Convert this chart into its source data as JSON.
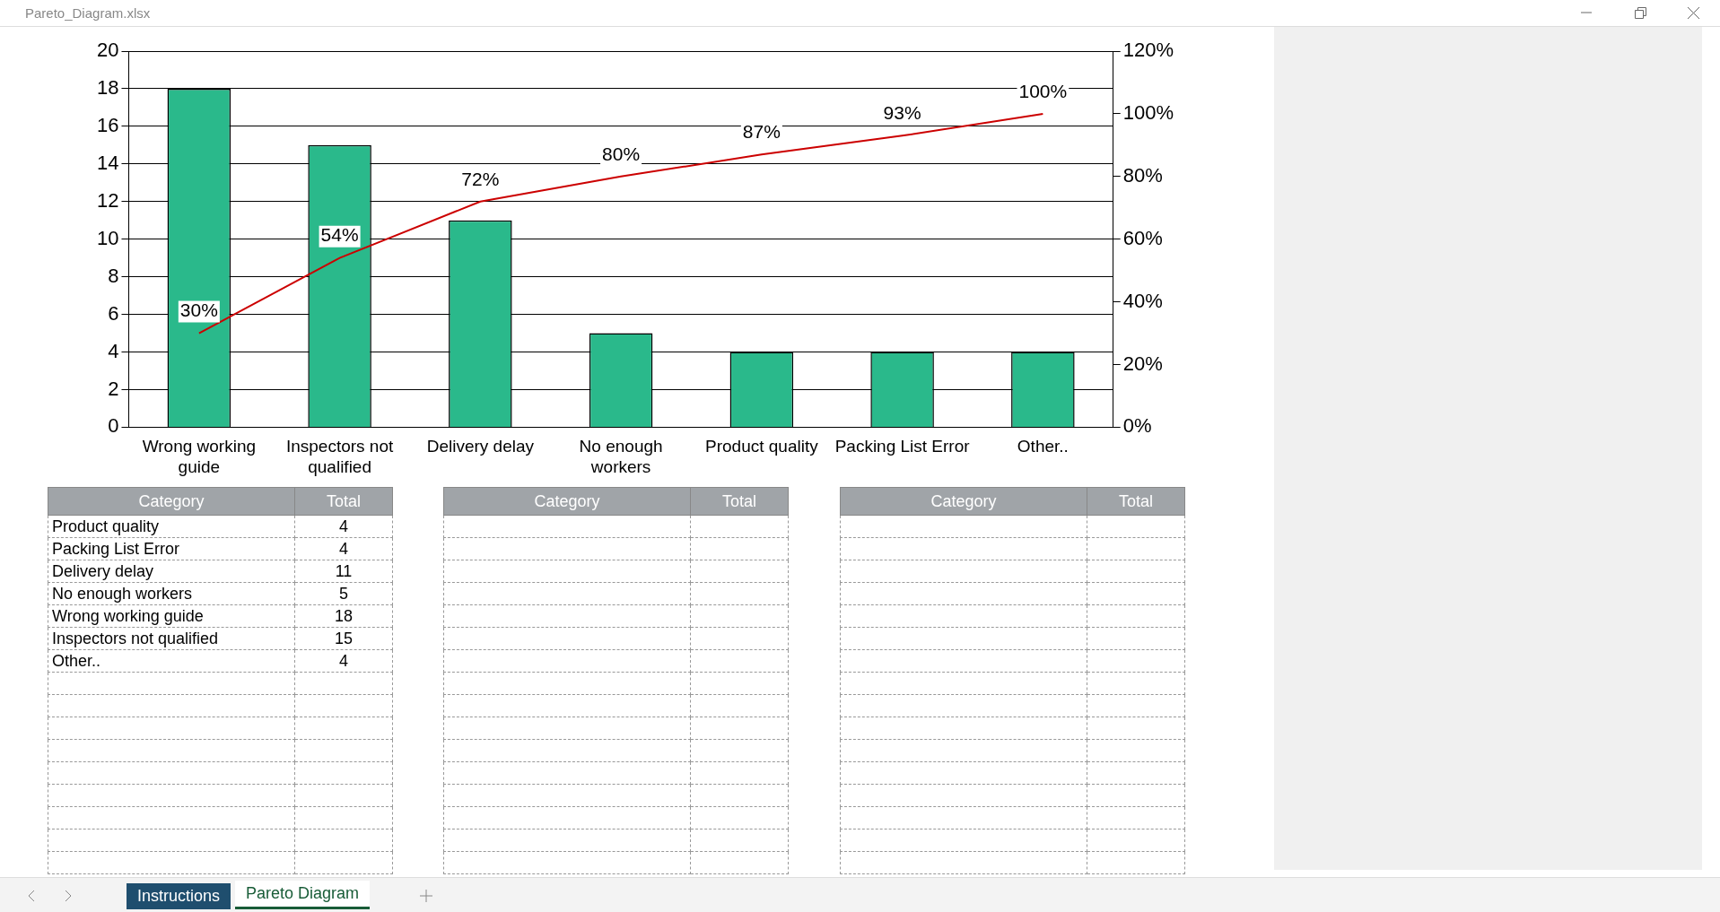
{
  "chart_data": {
    "type": "bar",
    "categories": [
      "Wrong working guide",
      "Inspectors not qualified",
      "Delivery delay",
      "No enough workers",
      "Product quality",
      "Packing List Error",
      "Other.."
    ],
    "series": [
      {
        "color": "#2ab98b",
        "values": [
          18,
          15,
          11,
          5,
          4,
          4,
          4
        ]
      },
      {
        "type": "line",
        "axis": "y2",
        "color": "#cc0000",
        "values": [
          30,
          54,
          72,
          80,
          87,
          93,
          100
        ],
        "value_labels": [
          "30%",
          "54%",
          "72%",
          "80%",
          "87%",
          "93%",
          "100%"
        ]
      }
    ],
    "ylim": [
      0,
      20
    ],
    "yticks": [
      0,
      2,
      4,
      6,
      8,
      10,
      12,
      14,
      16,
      18,
      20
    ],
    "y2lim": [
      0,
      120
    ],
    "y2ticks": [
      {
        "value": 0,
        "label": "0%"
      },
      {
        "value": 20,
        "label": "20%"
      },
      {
        "value": 40,
        "label": "40%"
      },
      {
        "value": 60,
        "label": "60%"
      },
      {
        "value": 80,
        "label": "80%"
      },
      {
        "value": 100,
        "label": "100%"
      },
      {
        "value": 120,
        "label": "120%"
      }
    ],
    "grid": "y",
    "legend": false,
    "marker": "none",
    "line_style": "solid",
    "annotations": [
      "Pareto_Diagram.xlsx",
      "Instructions",
      "Pareto Diagram",
      "Category",
      "Total",
      "Category",
      "Total",
      "Category",
      "Total",
      "Product quality",
      "4",
      "Packing List Error",
      "4",
      "Delivery delay",
      "11",
      "No enough workers",
      "5",
      "Wrong working guide",
      "18",
      "Inspectors not qualified",
      "15",
      "Other..",
      "4"
    ]
  }
}
